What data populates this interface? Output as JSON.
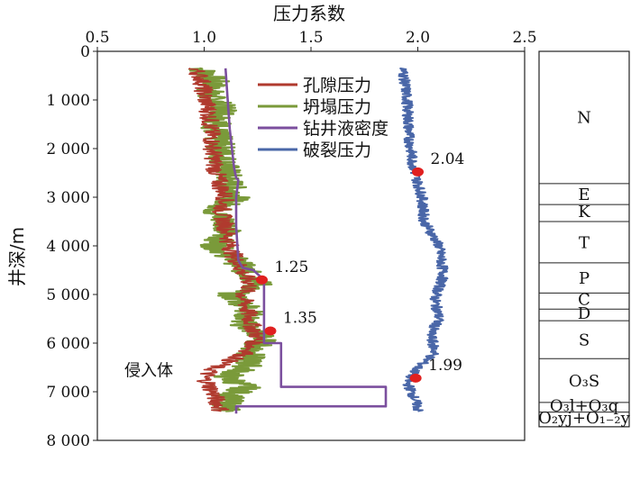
{
  "chart_data": {
    "type": "line",
    "title": "压力系数",
    "xlabel": "压力系数",
    "ylabel": "井深/m",
    "x_ticks": [
      "0.5",
      "1.0",
      "1.5",
      "2.0",
      "2.5"
    ],
    "y_ticks": [
      "0",
      "1 000",
      "2 000",
      "3 000",
      "4 000",
      "5 000",
      "6 000",
      "7 000",
      "8 000"
    ],
    "xlim": [
      0.5,
      2.5
    ],
    "ylim": [
      8000,
      0
    ],
    "y_axis_inverted": true,
    "x_axis_position": "top",
    "legend_position": "top-center",
    "series": [
      {
        "name": "孔隙压力",
        "color": "#b03a2e",
        "points": [
          [
            0.96,
            350
          ],
          [
            0.99,
            600
          ],
          [
            1.0,
            900
          ],
          [
            1.02,
            1200
          ],
          [
            1.03,
            1600
          ],
          [
            1.04,
            2000
          ],
          [
            1.05,
            2400
          ],
          [
            1.07,
            2700
          ],
          [
            1.1,
            3000
          ],
          [
            1.08,
            3300
          ],
          [
            1.1,
            3600
          ],
          [
            1.12,
            4000
          ],
          [
            1.15,
            4300
          ],
          [
            1.18,
            4550
          ],
          [
            1.22,
            4800
          ],
          [
            1.18,
            5000
          ],
          [
            1.2,
            5300
          ],
          [
            1.22,
            5600
          ],
          [
            1.25,
            5900
          ],
          [
            1.2,
            6200
          ],
          [
            1.05,
            6500
          ],
          [
            1.0,
            6700
          ],
          [
            1.03,
            6900
          ],
          [
            1.05,
            7100
          ],
          [
            1.08,
            7400
          ]
        ]
      },
      {
        "name": "坍塌压力",
        "color": "#7a9a3a",
        "points": [
          [
            0.98,
            350
          ],
          [
            1.05,
            600
          ],
          [
            1.02,
            900
          ],
          [
            1.1,
            1200
          ],
          [
            1.05,
            1600
          ],
          [
            1.08,
            2000
          ],
          [
            1.1,
            2400
          ],
          [
            1.12,
            2700
          ],
          [
            1.15,
            3000
          ],
          [
            1.05,
            3300
          ],
          [
            1.12,
            3600
          ],
          [
            1.05,
            4000
          ],
          [
            1.15,
            4300
          ],
          [
            1.2,
            4550
          ],
          [
            1.26,
            4800
          ],
          [
            1.12,
            5000
          ],
          [
            1.22,
            5300
          ],
          [
            1.18,
            5600
          ],
          [
            1.28,
            5900
          ],
          [
            1.22,
            6200
          ],
          [
            1.2,
            6500
          ],
          [
            1.1,
            6700
          ],
          [
            1.2,
            6900
          ],
          [
            1.12,
            7100
          ],
          [
            1.1,
            7400
          ]
        ]
      },
      {
        "name": "钻井液密度",
        "color": "#7b4f9e",
        "points": [
          [
            1.1,
            350
          ],
          [
            1.11,
            1000
          ],
          [
            1.12,
            1600
          ],
          [
            1.14,
            2400
          ],
          [
            1.15,
            2600
          ],
          [
            1.16,
            2650
          ],
          [
            1.15,
            3000
          ],
          [
            1.15,
            3600
          ],
          [
            1.16,
            4300
          ],
          [
            1.18,
            4450
          ],
          [
            1.23,
            4500
          ],
          [
            1.28,
            4700
          ],
          [
            1.28,
            6000
          ],
          [
            1.36,
            6000
          ],
          [
            1.36,
            6900
          ],
          [
            1.85,
            6900
          ],
          [
            1.85,
            7300
          ],
          [
            1.15,
            7300
          ],
          [
            1.15,
            7450
          ]
        ]
      },
      {
        "name": "破裂压力",
        "color": "#4a67a8",
        "points": [
          [
            1.93,
            350
          ],
          [
            1.95,
            1000
          ],
          [
            1.96,
            1800
          ],
          [
            1.98,
            2400
          ],
          [
            2.0,
            2700
          ],
          [
            2.02,
            3000
          ],
          [
            2.03,
            3500
          ],
          [
            2.1,
            4000
          ],
          [
            2.12,
            4600
          ],
          [
            2.08,
            5100
          ],
          [
            2.1,
            5500
          ],
          [
            2.06,
            5800
          ],
          [
            2.08,
            6200
          ],
          [
            2.0,
            6500
          ],
          [
            1.95,
            6800
          ],
          [
            1.98,
            7100
          ],
          [
            2.0,
            7300
          ],
          [
            2.0,
            7400
          ]
        ]
      }
    ],
    "annotations": [
      {
        "label": "2.04",
        "x": 2.0,
        "y": 2480
      },
      {
        "label": "1.25",
        "x": 1.27,
        "y": 4700
      },
      {
        "label": "1.35",
        "x": 1.31,
        "y": 5750
      },
      {
        "label": "1.99",
        "x": 1.99,
        "y": 6720
      }
    ],
    "text_annotations": [
      {
        "label": "侵入体",
        "y": 6550
      }
    ],
    "strata": [
      {
        "label": "N",
        "top": 0,
        "bottom": 2720
      },
      {
        "label": "E",
        "top": 2720,
        "bottom": 3150
      },
      {
        "label": "K",
        "top": 3150,
        "bottom": 3500
      },
      {
        "label": "T",
        "top": 3500,
        "bottom": 4350
      },
      {
        "label": "P",
        "top": 4350,
        "bottom": 4970
      },
      {
        "label": "C",
        "top": 4970,
        "bottom": 5300
      },
      {
        "label": "D",
        "top": 5300,
        "bottom": 5540
      },
      {
        "label": "S",
        "top": 5540,
        "bottom": 6320
      },
      {
        "label": "O₃S",
        "top": 6320,
        "bottom": 7220
      },
      {
        "label": "O₃l+O₃q",
        "top": 7220,
        "bottom": 7420
      },
      {
        "label": "O₂yj+O₁₋₂y",
        "top": 7420,
        "bottom": 7720
      }
    ]
  }
}
